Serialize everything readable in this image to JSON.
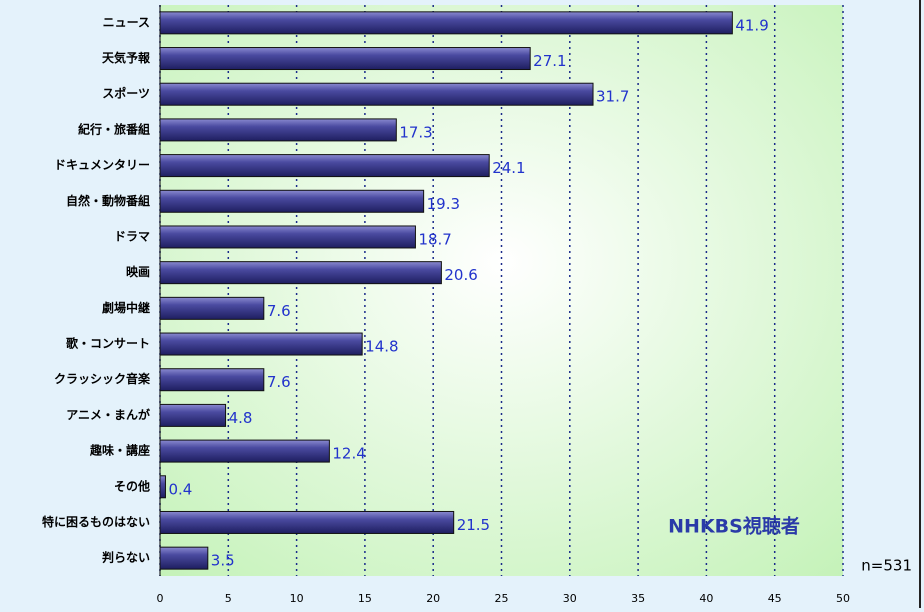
{
  "chart_data": {
    "type": "bar",
    "orientation": "horizontal",
    "categories": [
      "ニュース",
      "天気予報",
      "スポーツ",
      "紀行・旅番組",
      "ドキュメンタリー",
      "自然・動物番組",
      "ドラマ",
      "映画",
      "劇場中継",
      "歌・コンサート",
      "クラッシック音楽",
      "アニメ・まんが",
      "趣味・講座",
      "その他",
      "特に困るものはない",
      "判らない"
    ],
    "values": [
      41.9,
      27.1,
      31.7,
      17.3,
      24.1,
      19.3,
      18.7,
      20.6,
      7.6,
      14.8,
      7.6,
      4.8,
      12.4,
      0.4,
      21.5,
      3.5
    ],
    "color": "#3a3a8c",
    "xlim": [
      0,
      50
    ],
    "xticks": [
      0,
      5,
      10,
      15,
      20,
      25,
      30,
      35,
      40,
      45,
      50
    ],
    "grid": true,
    "annotations": [
      "NHKBS視聴者",
      "n=531"
    ]
  }
}
